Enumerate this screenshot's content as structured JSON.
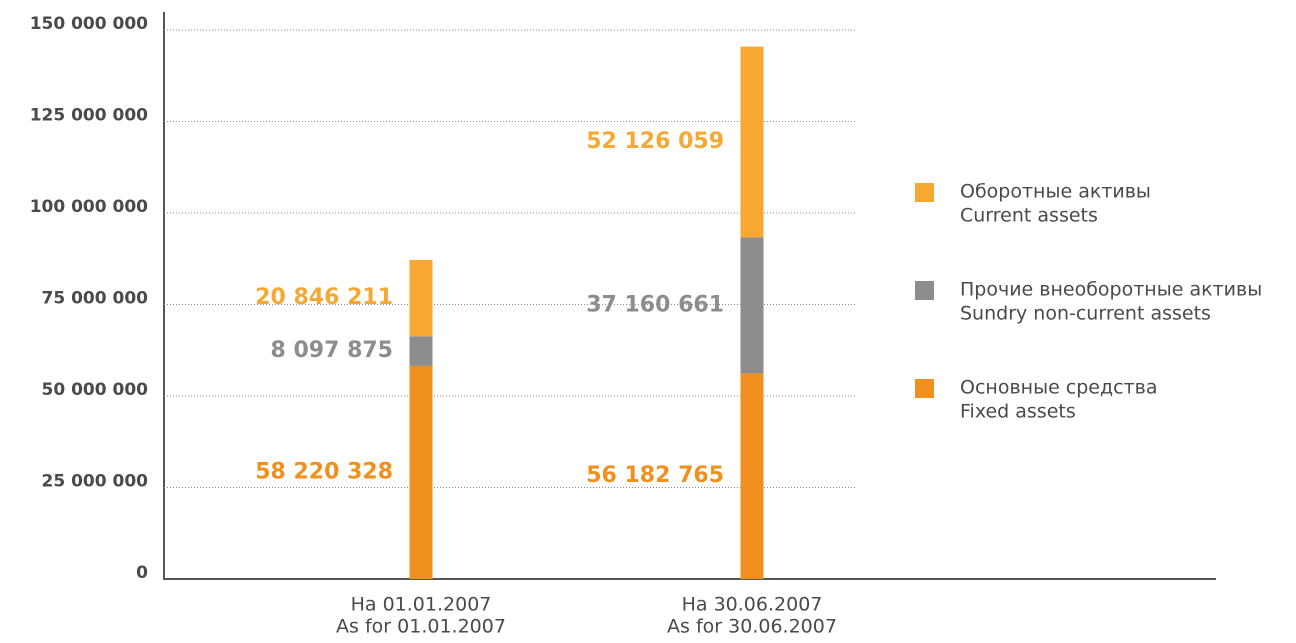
{
  "chart_data": {
    "type": "stacked_bar",
    "categories": [
      [
        "На 01.01.2007",
        "As for 01.01.2007"
      ],
      [
        "На 30.06.2007",
        "As for 30.06.2007"
      ]
    ],
    "series": [
      {
        "name": [
          "Основные средства",
          "Fixed assets"
        ],
        "color": "#f0901e",
        "values": [
          58220328,
          56182765
        ],
        "value_labels": [
          "58 220 328",
          "56 182 765"
        ]
      },
      {
        "name": [
          "Прочие внеоборотные активы",
          "Sundry non-current assets"
        ],
        "color": "#8d8d8f",
        "values": [
          8097875,
          37160661
        ],
        "value_labels": [
          "8 097 875",
          "37 160 661"
        ]
      },
      {
        "name": [
          "Оборотные активы",
          "Current assets"
        ],
        "color": "#f7a833",
        "values": [
          20846211,
          52126059
        ],
        "value_labels": [
          "20 846 211",
          "52 126 059"
        ]
      }
    ],
    "ylim": [
      0,
      150000000
    ],
    "yticks": [
      0,
      {
        "value": 25000000,
        "label": "25 000 000"
      },
      {
        "value": 50000000,
        "label": "50 000 000"
      },
      {
        "value": 75000000,
        "label": "75 000 000"
      },
      {
        "value": 100000000,
        "label": "100 000 000"
      },
      {
        "value": 125000000,
        "label": "125 000 000"
      },
      {
        "value": 150000000,
        "label": "150 000 000"
      }
    ],
    "grid": true,
    "legend": "right"
  }
}
